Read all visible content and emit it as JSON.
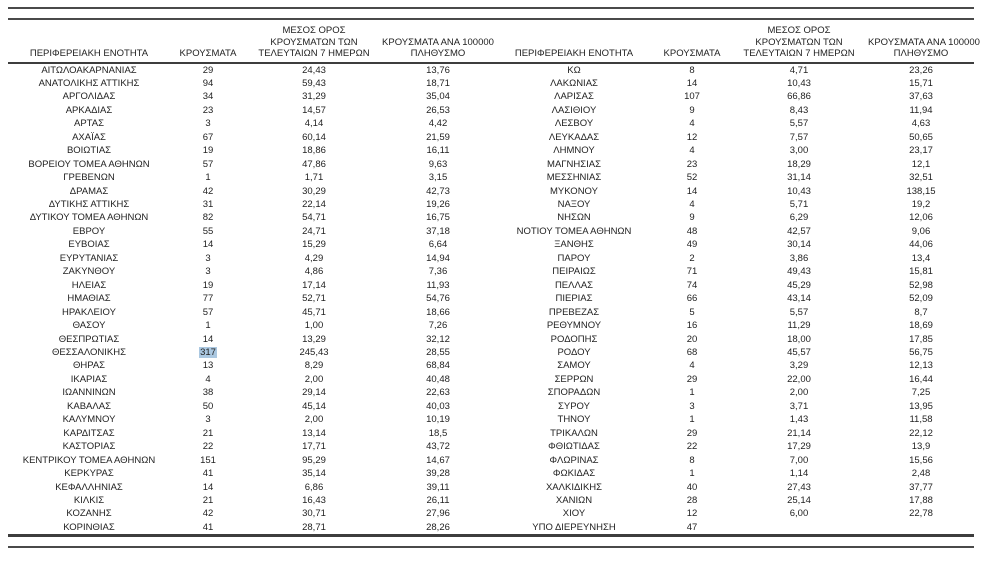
{
  "table": {
    "description": "ΚΡΟΥΣΜΑΤΑ ΑΝΑ ΠΕΡΙΦΕΡΕΙΑΚΗ ΕΝΟΤΗΤΑ",
    "header_columns": [
      {
        "key": "regional-unit-left",
        "lines": [
          "ΠΕΡΙΦΕΡΕΙΑΚΗ ΕΝΟΤΗΤΑ"
        ]
      },
      {
        "key": "cases-left",
        "lines": [
          "ΚΡΟΥΣΜΑΤΑ"
        ]
      },
      {
        "key": "avg-7day-left",
        "lines": [
          "ΜΕΣΟΣ ΟΡΟΣ",
          "ΚΡΟΥΣΜΑΤΩΝ ΤΩΝ",
          "ΤΕΛΕΥΤΑΙΩΝ 7 ΗΜΕΡΩΝ"
        ]
      },
      {
        "key": "per-100k-left",
        "lines": [
          "ΚΡΟΥΣΜΑΤΑ ΑΝΑ 100000",
          "ΠΛΗΘΥΣΜΟ"
        ]
      },
      {
        "key": "regional-unit-right",
        "lines": [
          "ΠΕΡΙΦΕΡΕΙΑΚΗ ΕΝΟΤΗΤΑ"
        ]
      },
      {
        "key": "cases-right",
        "lines": [
          "ΚΡΟΥΣΜΑΤΑ"
        ]
      },
      {
        "key": "avg-7day-right",
        "lines": [
          "ΜΕΣΟΣ ΟΡΟΣ",
          "ΚΡΟΥΣΜΑΤΩΝ ΤΩΝ",
          "ΤΕΛΕΥΤΑΙΩΝ 7 ΗΜΕΡΩΝ"
        ]
      },
      {
        "key": "per-100k-right",
        "lines": [
          "ΚΡΟΥΣΜΑΤΑ ΑΝΑ 100000",
          "ΠΛΗΘΥΣΜΟ"
        ]
      }
    ],
    "left_rows": [
      [
        "ΑΙΤΩΛΟΑΚΑΡΝΑΝΙΑΣ",
        "29",
        "24,43",
        "13,76"
      ],
      [
        "ΑΝΑΤΟΛΙΚΗΣ ΑΤΤΙΚΗΣ",
        "94",
        "59,43",
        "18,71"
      ],
      [
        "ΑΡΓΟΛΙΔΑΣ",
        "34",
        "31,29",
        "35,04"
      ],
      [
        "ΑΡΚΑΔΙΑΣ",
        "23",
        "14,57",
        "26,53"
      ],
      [
        "ΑΡΤΑΣ",
        "3",
        "4,14",
        "4,42"
      ],
      [
        "ΑΧΑΪΑΣ",
        "67",
        "60,14",
        "21,59"
      ],
      [
        "ΒΟΙΩΤΙΑΣ",
        "19",
        "18,86",
        "16,11"
      ],
      [
        "ΒΟΡΕΙΟΥ ΤΟΜΕΑ ΑΘΗΝΩΝ",
        "57",
        "47,86",
        "9,63"
      ],
      [
        "ΓΡΕΒΕΝΩΝ",
        "1",
        "1,71",
        "3,15"
      ],
      [
        "ΔΡΑΜΑΣ",
        "42",
        "30,29",
        "42,73"
      ],
      [
        "ΔΥΤΙΚΗΣ ΑΤΤΙΚΗΣ",
        "31",
        "22,14",
        "19,26"
      ],
      [
        "ΔΥΤΙΚΟΥ ΤΟΜΕΑ ΑΘΗΝΩΝ",
        "82",
        "54,71",
        "16,75"
      ],
      [
        "ΕΒΡΟΥ",
        "55",
        "24,71",
        "37,18"
      ],
      [
        "ΕΥΒΟΙΑΣ",
        "14",
        "15,29",
        "6,64"
      ],
      [
        "ΕΥΡΥΤΑΝΙΑΣ",
        "3",
        "4,29",
        "14,94"
      ],
      [
        "ΖΑΚΥΝΘΟΥ",
        "3",
        "4,86",
        "7,36"
      ],
      [
        "ΗΛΕΙΑΣ",
        "19",
        "17,14",
        "11,93"
      ],
      [
        "ΗΜΑΘΙΑΣ",
        "77",
        "52,71",
        "54,76"
      ],
      [
        "ΗΡΑΚΛΕΙΟΥ",
        "57",
        "45,71",
        "18,66"
      ],
      [
        "ΘΑΣΟΥ",
        "1",
        "1,00",
        "7,26"
      ],
      [
        "ΘΕΣΠΡΩΤΙΑΣ",
        "14",
        "13,29",
        "32,12"
      ],
      [
        "ΘΕΣΣΑΛΟΝΙΚΗΣ",
        "317",
        "245,43",
        "28,55"
      ],
      [
        "ΘΗΡΑΣ",
        "13",
        "8,29",
        "68,84"
      ],
      [
        "ΙΚΑΡΙΑΣ",
        "4",
        "2,00",
        "40,48"
      ],
      [
        "ΙΩΑΝΝΙΝΩΝ",
        "38",
        "29,14",
        "22,63"
      ],
      [
        "ΚΑΒΑΛΑΣ",
        "50",
        "45,14",
        "40,03"
      ],
      [
        "ΚΑΛΥΜΝΟΥ",
        "3",
        "2,00",
        "10,19"
      ],
      [
        "ΚΑΡΔΙΤΣΑΣ",
        "21",
        "13,14",
        "18,5"
      ],
      [
        "ΚΑΣΤΟΡΙΑΣ",
        "22",
        "17,71",
        "43,72"
      ],
      [
        "ΚΕΝΤΡΙΚΟΥ ΤΟΜΕΑ ΑΘΗΝΩΝ",
        "151",
        "95,29",
        "14,67"
      ],
      [
        "ΚΕΡΚΥΡΑΣ",
        "41",
        "35,14",
        "39,28"
      ],
      [
        "ΚΕΦΑΛΛΗΝΙΑΣ",
        "14",
        "6,86",
        "39,11"
      ],
      [
        "ΚΙΛΚΙΣ",
        "21",
        "16,43",
        "26,11"
      ],
      [
        "ΚΟΖΑΝΗΣ",
        "42",
        "30,71",
        "27,96"
      ],
      [
        "ΚΟΡΙΝΘΙΑΣ",
        "41",
        "28,71",
        "28,26"
      ]
    ],
    "right_rows": [
      [
        "ΚΩ",
        "8",
        "4,71",
        "23,26"
      ],
      [
        "ΛΑΚΩΝΙΑΣ",
        "14",
        "10,43",
        "15,71"
      ],
      [
        "ΛΑΡΙΣΑΣ",
        "107",
        "66,86",
        "37,63"
      ],
      [
        "ΛΑΣΙΘΙΟΥ",
        "9",
        "8,43",
        "11,94"
      ],
      [
        "ΛΕΣΒΟΥ",
        "4",
        "5,57",
        "4,63"
      ],
      [
        "ΛΕΥΚΑΔΑΣ",
        "12",
        "7,57",
        "50,65"
      ],
      [
        "ΛΗΜΝΟΥ",
        "4",
        "3,00",
        "23,17"
      ],
      [
        "ΜΑΓΝΗΣΙΑΣ",
        "23",
        "18,29",
        "12,1"
      ],
      [
        "ΜΕΣΣΗΝΙΑΣ",
        "52",
        "31,14",
        "32,51"
      ],
      [
        "ΜΥΚΟΝΟΥ",
        "14",
        "10,43",
        "138,15"
      ],
      [
        "ΝΑΞΟΥ",
        "4",
        "5,71",
        "19,2"
      ],
      [
        "ΝΗΣΩΝ",
        "9",
        "6,29",
        "12,06"
      ],
      [
        "ΝΟΤΙΟΥ ΤΟΜΕΑ ΑΘΗΝΩΝ",
        "48",
        "42,57",
        "9,06"
      ],
      [
        "ΞΑΝΘΗΣ",
        "49",
        "30,14",
        "44,06"
      ],
      [
        "ΠΑΡΟΥ",
        "2",
        "3,86",
        "13,4"
      ],
      [
        "ΠΕΙΡΑΙΩΣ",
        "71",
        "49,43",
        "15,81"
      ],
      [
        "ΠΕΛΛΑΣ",
        "74",
        "45,29",
        "52,98"
      ],
      [
        "ΠΙΕΡΙΑΣ",
        "66",
        "43,14",
        "52,09"
      ],
      [
        "ΠΡΕΒΕΖΑΣ",
        "5",
        "5,57",
        "8,7"
      ],
      [
        "ΡΕΘΥΜΝΟΥ",
        "16",
        "11,29",
        "18,69"
      ],
      [
        "ΡΟΔΟΠΗΣ",
        "20",
        "18,00",
        "17,85"
      ],
      [
        "ΡΟΔΟΥ",
        "68",
        "45,57",
        "56,75"
      ],
      [
        "ΣΑΜΟΥ",
        "4",
        "3,29",
        "12,13"
      ],
      [
        "ΣΕΡΡΩΝ",
        "29",
        "22,00",
        "16,44"
      ],
      [
        "ΣΠΟΡΑΔΩΝ",
        "1",
        "2,00",
        "7,25"
      ],
      [
        "ΣΥΡΟΥ",
        "3",
        "3,71",
        "13,95"
      ],
      [
        "ΤΗΝΟΥ",
        "1",
        "1,43",
        "11,58"
      ],
      [
        "ΤΡΙΚΑΛΩΝ",
        "29",
        "21,14",
        "22,12"
      ],
      [
        "ΦΘΙΩΤΙΔΑΣ",
        "22",
        "17,29",
        "13,9"
      ],
      [
        "ΦΛΩΡΙΝΑΣ",
        "8",
        "7,00",
        "15,56"
      ],
      [
        "ΦΩΚΙΔΑΣ",
        "1",
        "1,14",
        "2,48"
      ],
      [
        "ΧΑΛΚΙΔΙΚΗΣ",
        "40",
        "27,43",
        "37,77"
      ],
      [
        "ΧΑΝΙΩΝ",
        "28",
        "25,14",
        "17,88"
      ],
      [
        "ΧΙΟΥ",
        "12",
        "6,00",
        "22,78"
      ],
      [
        "ΥΠΟ ΔΙΕΡΕΥΝΗΣΗ",
        "47",
        "",
        ""
      ]
    ],
    "highlight": {
      "row_index": 21,
      "flat_column_index": 1,
      "value": "317",
      "color": "#abc8e1"
    }
  },
  "colors": {
    "text": "#222222",
    "rule_thin": "#4a4a4a",
    "rule_heavy": "#3d3d3d",
    "selection_highlight": "#abc8e1"
  }
}
